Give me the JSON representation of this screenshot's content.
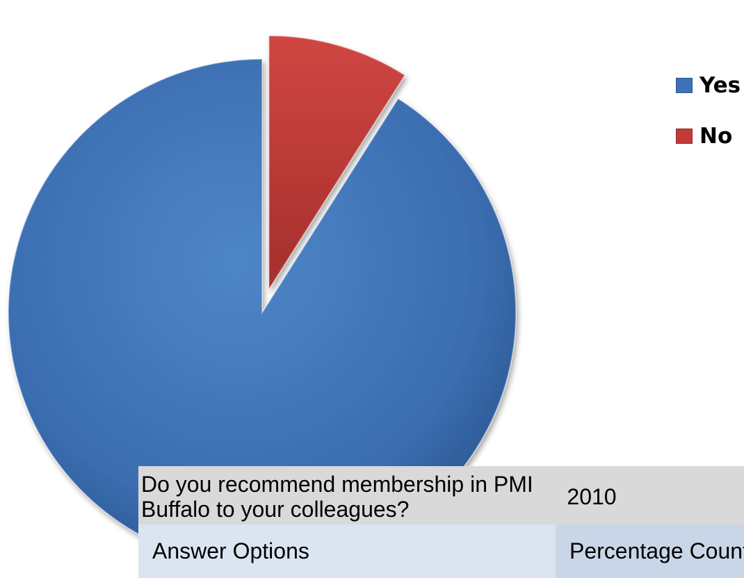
{
  "chart_data": {
    "type": "pie",
    "categories": [
      "Yes",
      "No"
    ],
    "values": [
      91,
      9
    ],
    "exploded": true,
    "legend_position": "right",
    "colors": [
      "#3d72b6",
      "#c23a36"
    ]
  },
  "legend": {
    "items": [
      {
        "label": "Yes",
        "color": "#3d72b6"
      },
      {
        "label": "No",
        "color": "#c23a36"
      }
    ]
  },
  "table": {
    "question": "Do you recommend membership in PMI Buffalo to your colleagues?",
    "year": "2010",
    "col1": "Answer Options",
    "col2": "Percentage Count"
  }
}
